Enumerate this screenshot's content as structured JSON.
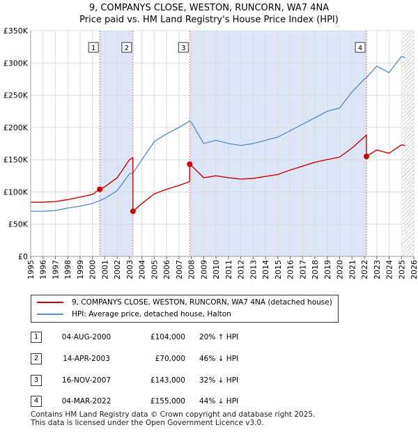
{
  "titles": {
    "line1": "9, COMPANYS CLOSE, WESTON, RUNCORN, WA7 4NA",
    "line2": "Price paid vs. HM Land Registry's House Price Index (HPI)"
  },
  "legend": {
    "property": "9, COMPANYS CLOSE, WESTON, RUNCORN, WA7 4NA (detached house)",
    "hpi": "HPI: Average price, detached house, Halton"
  },
  "transactions": [
    {
      "num": "1",
      "date": "04-AUG-2000",
      "price": "£104,000",
      "hpi": "20% ↑ HPI"
    },
    {
      "num": "2",
      "date": "14-APR-2003",
      "price": "£70,000",
      "hpi": "46% ↓ HPI"
    },
    {
      "num": "3",
      "date": "16-NOV-2007",
      "price": "£143,000",
      "hpi": "32% ↓ HPI"
    },
    {
      "num": "4",
      "date": "04-MAR-2022",
      "price": "£155,000",
      "hpi": "44% ↓ HPI"
    }
  ],
  "footer": {
    "line1": "Contains HM Land Registry data © Crown copyright and database right 2025.",
    "line2": "This data is licensed under the Open Government Licence v3.0."
  },
  "chart_data": {
    "type": "line",
    "xlim": [
      1995,
      2026
    ],
    "ylim": [
      0,
      350000
    ],
    "yticks": [
      {
        "value": 0,
        "label": "£0"
      },
      {
        "value": 50000,
        "label": "£50K"
      },
      {
        "value": 100000,
        "label": "£100K"
      },
      {
        "value": 150000,
        "label": "£150K"
      },
      {
        "value": 200000,
        "label": "£200K"
      },
      {
        "value": 250000,
        "label": "£250K"
      },
      {
        "value": 300000,
        "label": "£300K"
      },
      {
        "value": 350000,
        "label": "£350K"
      }
    ],
    "xticks": [
      "1995",
      "1996",
      "1997",
      "1998",
      "1999",
      "2000",
      "2001",
      "2002",
      "2003",
      "2004",
      "2005",
      "2006",
      "2007",
      "2008",
      "2009",
      "2010",
      "2011",
      "2012",
      "2013",
      "2014",
      "2015",
      "2016",
      "2017",
      "2018",
      "2019",
      "2020",
      "2021",
      "2022",
      "2023",
      "2024",
      "2025",
      "2026"
    ],
    "colors": {
      "property": "#cc0000",
      "hpi": "#5b8fcf",
      "shade": "#dde6f7",
      "vline": "#e06c9f",
      "grid": "#dddddd",
      "hatch": "#999999"
    },
    "shaded_ranges": [
      [
        2000.59,
        2003.28
      ],
      [
        2007.87,
        2022.17
      ]
    ],
    "hatch_from": 2025.1,
    "sales": [
      {
        "label": "1",
        "x": 2000.59,
        "y": 104000
      },
      {
        "label": "2",
        "x": 2003.28,
        "y": 70000
      },
      {
        "label": "3",
        "x": 2007.87,
        "y": 143000
      },
      {
        "label": "4",
        "x": 2022.17,
        "y": 155000
      }
    ],
    "series": [
      {
        "name": "HPI: Average price, detached house, Halton",
        "points": [
          [
            1995,
            70000
          ],
          [
            1996,
            70000
          ],
          [
            1997,
            71000
          ],
          [
            1998,
            75000
          ],
          [
            1999,
            78000
          ],
          [
            2000,
            82000
          ],
          [
            2000.59,
            86500
          ],
          [
            2001,
            90000
          ],
          [
            2002,
            102000
          ],
          [
            2003,
            128000
          ],
          [
            2003.28,
            129500
          ],
          [
            2004,
            150000
          ],
          [
            2005,
            178000
          ],
          [
            2006,
            190000
          ],
          [
            2007,
            200000
          ],
          [
            2007.87,
            210000
          ],
          [
            2008,
            208000
          ],
          [
            2009,
            175000
          ],
          [
            2010,
            180000
          ],
          [
            2011,
            175000
          ],
          [
            2012,
            172000
          ],
          [
            2013,
            175000
          ],
          [
            2014,
            180000
          ],
          [
            2015,
            185000
          ],
          [
            2016,
            195000
          ],
          [
            2017,
            205000
          ],
          [
            2018,
            215000
          ],
          [
            2019,
            225000
          ],
          [
            2020,
            230000
          ],
          [
            2021,
            255000
          ],
          [
            2022,
            275000
          ],
          [
            2022.17,
            277000
          ],
          [
            2023,
            295000
          ],
          [
            2024,
            285000
          ],
          [
            2025,
            310000
          ],
          [
            2025.3,
            308000
          ]
        ]
      },
      {
        "name": "9, COMPANYS CLOSE, WESTON, RUNCORN, WA7 4NA (detached house)",
        "points": [
          [
            1995,
            84000
          ],
          [
            1996,
            84000
          ],
          [
            1997,
            85000
          ],
          [
            1998,
            88000
          ],
          [
            1999,
            92000
          ],
          [
            2000,
            96000
          ],
          [
            2000.59,
            104000
          ],
          [
            2001,
            108000
          ],
          [
            2002,
            122000
          ],
          [
            2003,
            150000
          ],
          [
            2003.27,
            153000
          ],
          [
            2003.28,
            70000
          ],
          [
            2004,
            82000
          ],
          [
            2005,
            97000
          ],
          [
            2006,
            104000
          ],
          [
            2007,
            110000
          ],
          [
            2007.86,
            116000
          ],
          [
            2007.87,
            143000
          ],
          [
            2008,
            141000
          ],
          [
            2009,
            122000
          ],
          [
            2010,
            125000
          ],
          [
            2011,
            122000
          ],
          [
            2012,
            120000
          ],
          [
            2013,
            121000
          ],
          [
            2014,
            124000
          ],
          [
            2015,
            127000
          ],
          [
            2016,
            134000
          ],
          [
            2017,
            140000
          ],
          [
            2018,
            146000
          ],
          [
            2019,
            150000
          ],
          [
            2020,
            154000
          ],
          [
            2021,
            168000
          ],
          [
            2022,
            185000
          ],
          [
            2022.16,
            188000
          ],
          [
            2022.17,
            155000
          ],
          [
            2023,
            165000
          ],
          [
            2024,
            160000
          ],
          [
            2025,
            173000
          ],
          [
            2025.3,
            172000
          ]
        ]
      }
    ]
  }
}
